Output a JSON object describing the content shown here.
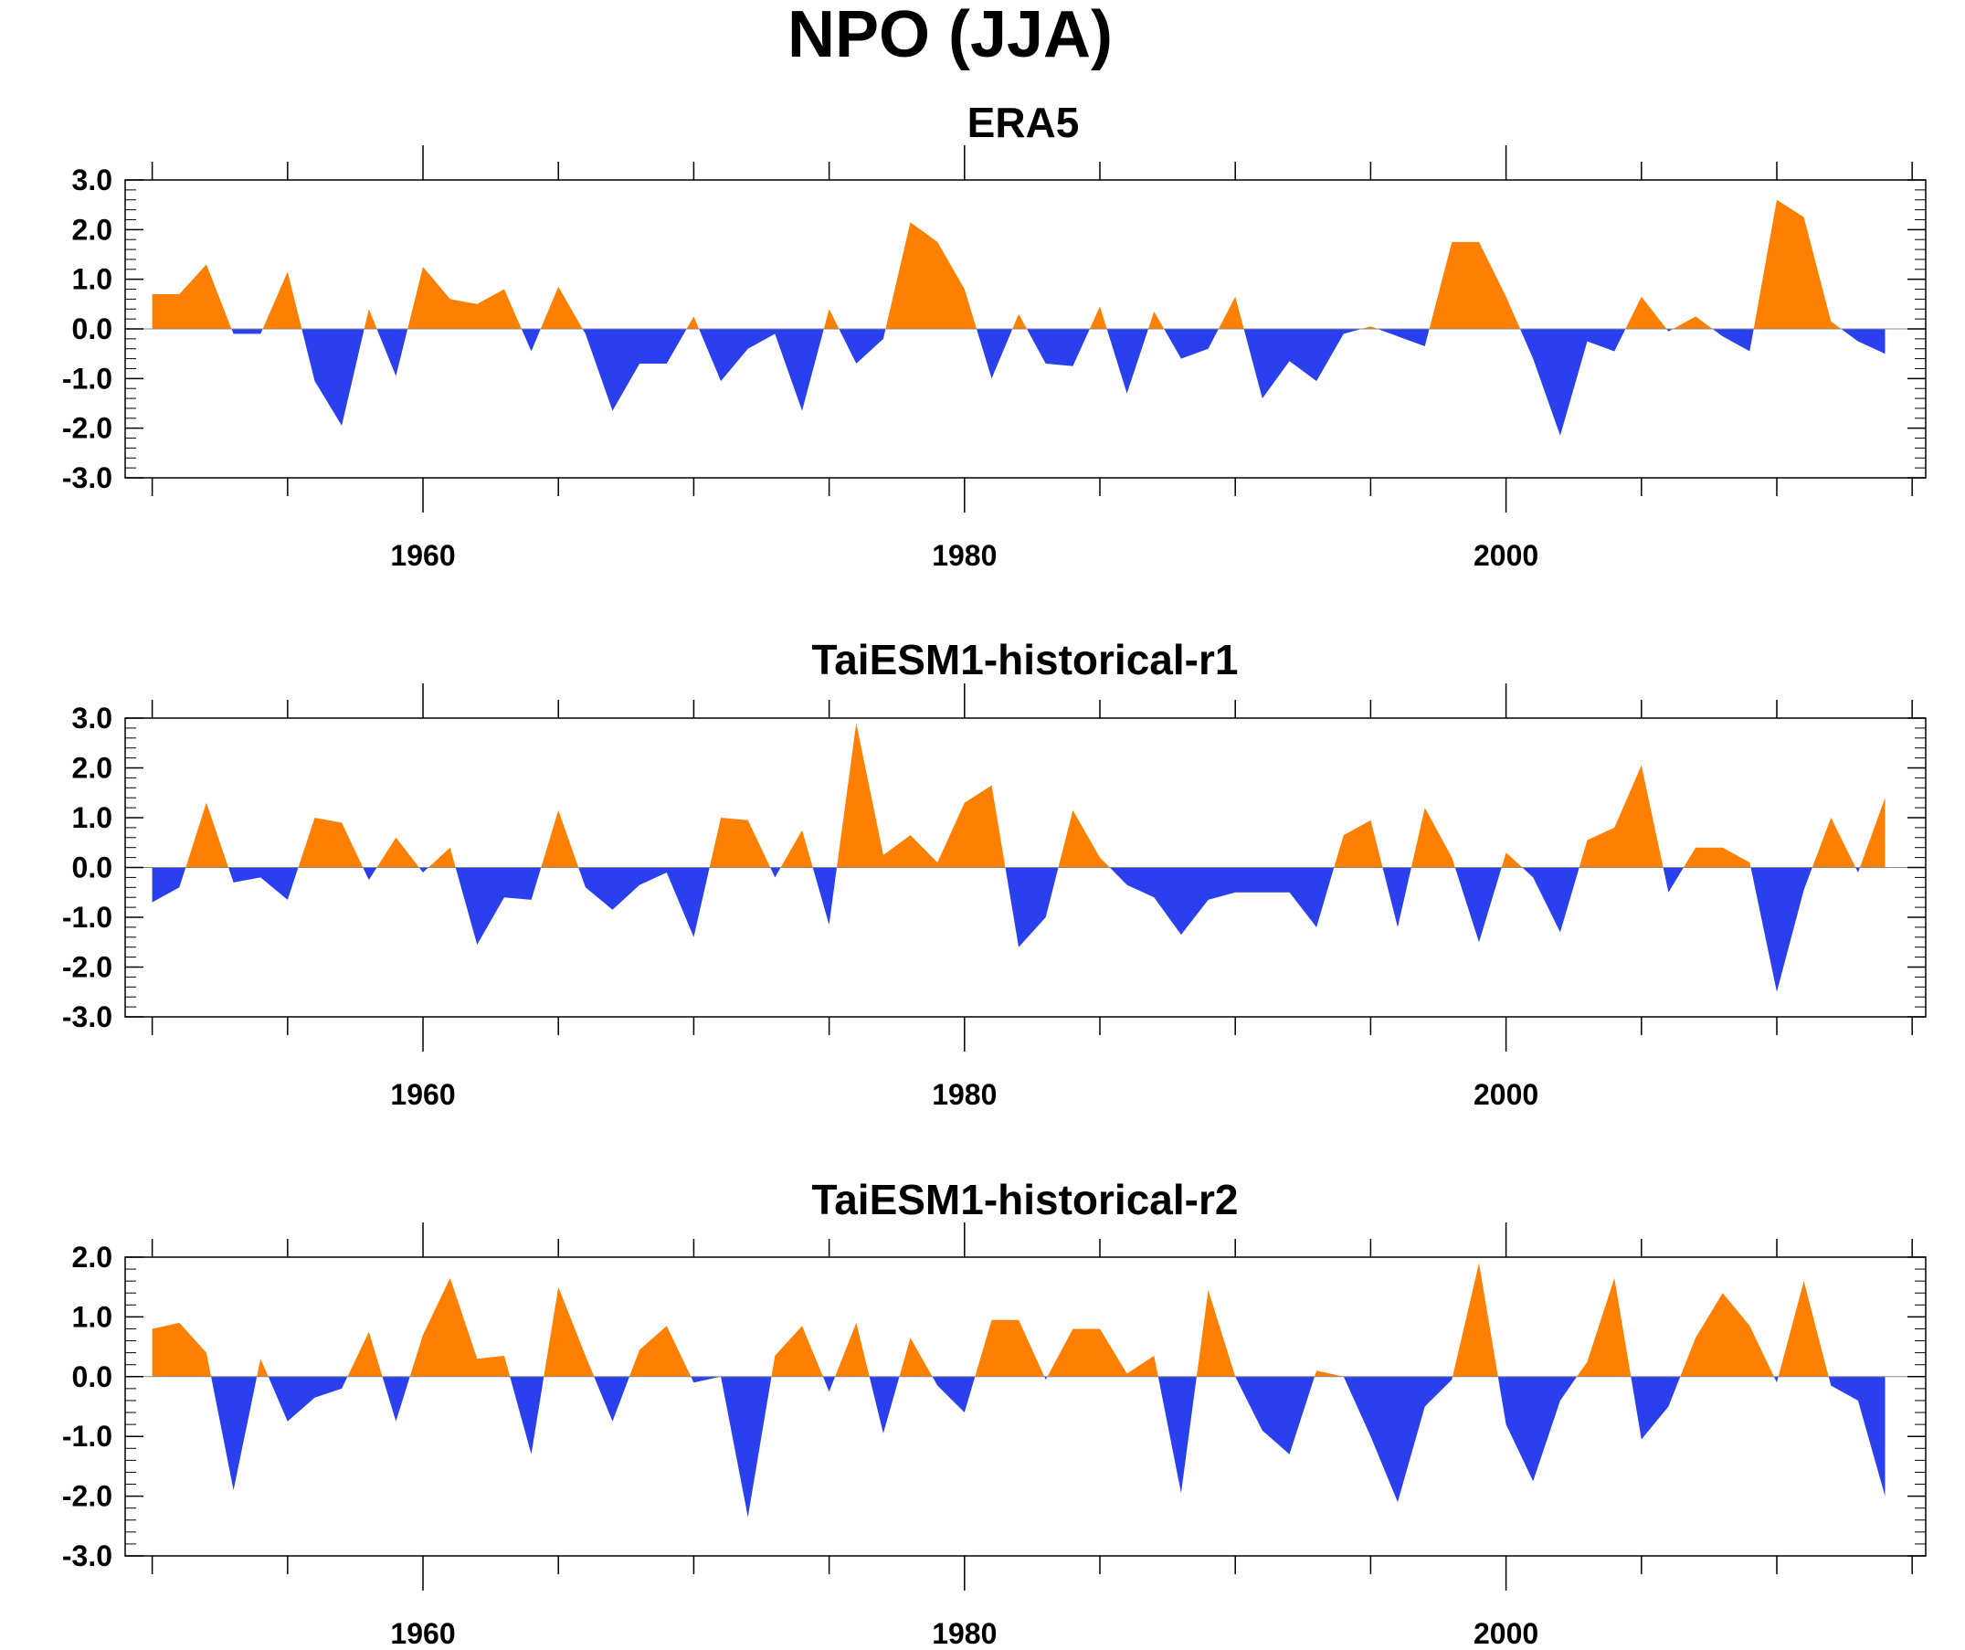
{
  "figure": {
    "title": "NPO (JJA)"
  },
  "colors": {
    "positive": "#ff8000",
    "negative": "#2a40ee",
    "axis": "#000000"
  },
  "chart_data": [
    {
      "type": "area",
      "title": "ERA5",
      "xlabel": "",
      "ylabel": "",
      "xlim": [
        1949,
        2015.5
      ],
      "ylim": [
        -3,
        3
      ],
      "xticks": [
        "1960",
        "1980",
        "2000"
      ],
      "yticks": [
        "-3.0",
        "-2.0",
        "-1.0",
        "0.0",
        "1.0",
        "2.0",
        "3.0"
      ],
      "x_start": 1950,
      "grid": false,
      "fill_above_zero": "#ff8000",
      "fill_below_zero": "#2a40ee",
      "values": [
        0.7,
        0.7,
        1.3,
        -0.1,
        -0.1,
        1.15,
        -1.05,
        -1.95,
        0.4,
        -0.95,
        1.25,
        0.6,
        0.5,
        0.8,
        -0.45,
        0.85,
        -0.1,
        -1.65,
        -0.7,
        -0.7,
        0.25,
        -1.05,
        -0.4,
        -0.1,
        -1.65,
        0.4,
        -0.7,
        -0.2,
        2.15,
        1.75,
        0.8,
        -1.0,
        0.3,
        -0.7,
        -0.75,
        0.45,
        -1.3,
        0.35,
        -0.6,
        -0.4,
        0.65,
        -1.4,
        -0.65,
        -1.05,
        -0.1,
        0.05,
        -0.15,
        -0.35,
        1.75,
        1.75,
        0.65,
        -0.6,
        -2.15,
        -0.25,
        -0.45,
        0.65,
        -0.05,
        0.25,
        -0.15,
        -0.45,
        2.6,
        2.25,
        0.15,
        -0.25,
        -0.5
      ]
    },
    {
      "type": "area",
      "title": "TaiESM1-historical-r1",
      "xlabel": "",
      "ylabel": "",
      "xlim": [
        1949,
        2015.5
      ],
      "ylim": [
        -3,
        3
      ],
      "xticks": [
        "1960",
        "1980",
        "2000"
      ],
      "yticks": [
        "-3.0",
        "-2.0",
        "-1.0",
        "0.0",
        "1.0",
        "2.0",
        "3.0"
      ],
      "x_start": 1950,
      "grid": false,
      "fill_above_zero": "#ff8000",
      "fill_below_zero": "#2a40ee",
      "values": [
        -0.7,
        -0.4,
        1.3,
        -0.3,
        -0.2,
        -0.65,
        1.0,
        0.9,
        -0.25,
        0.6,
        -0.1,
        0.4,
        -1.55,
        -0.6,
        -0.65,
        1.15,
        -0.4,
        -0.85,
        -0.35,
        -0.1,
        -1.4,
        1.0,
        0.95,
        -0.2,
        0.75,
        -1.15,
        2.9,
        0.25,
        0.65,
        0.1,
        1.3,
        1.65,
        -1.6,
        -1.0,
        1.15,
        0.2,
        -0.35,
        -0.6,
        -1.35,
        -0.65,
        -0.5,
        -0.5,
        -0.5,
        -1.2,
        0.65,
        0.95,
        -1.2,
        1.2,
        0.2,
        -1.5,
        0.3,
        -0.2,
        -1.3,
        0.55,
        0.8,
        2.05,
        -0.5,
        0.4,
        0.4,
        0.1,
        -2.5,
        -0.45,
        1.0,
        -0.1,
        1.4
      ]
    },
    {
      "type": "area",
      "title": "TaiESM1-historical-r2",
      "xlabel": "",
      "ylabel": "",
      "xlim": [
        1949,
        2015.5
      ],
      "ylim": [
        -3,
        2
      ],
      "xticks": [
        "1960",
        "1980",
        "2000"
      ],
      "yticks": [
        "-3.0",
        "-2.0",
        "-1.0",
        "0.0",
        "1.0",
        "2.0"
      ],
      "x_start": 1950,
      "grid": false,
      "fill_above_zero": "#ff8000",
      "fill_below_zero": "#2a40ee",
      "values": [
        0.8,
        0.9,
        0.4,
        -1.9,
        0.3,
        -0.75,
        -0.35,
        -0.2,
        0.75,
        -0.75,
        0.7,
        1.65,
        0.3,
        0.35,
        -1.3,
        1.5,
        0.35,
        -0.75,
        0.45,
        0.85,
        -0.1,
        0.0,
        -2.35,
        0.35,
        0.85,
        -0.25,
        0.9,
        -0.95,
        0.65,
        -0.15,
        -0.6,
        0.95,
        0.95,
        -0.05,
        0.8,
        0.8,
        0.05,
        0.35,
        -1.95,
        1.45,
        0.0,
        -0.9,
        -1.3,
        0.1,
        0.0,
        -1.0,
        -2.1,
        -0.5,
        -0.05,
        1.9,
        -0.8,
        -1.75,
        -0.4,
        0.25,
        1.65,
        -1.05,
        -0.5,
        0.65,
        1.4,
        0.85,
        -0.1,
        1.6,
        -0.15,
        -0.4,
        -2.0
      ]
    }
  ]
}
